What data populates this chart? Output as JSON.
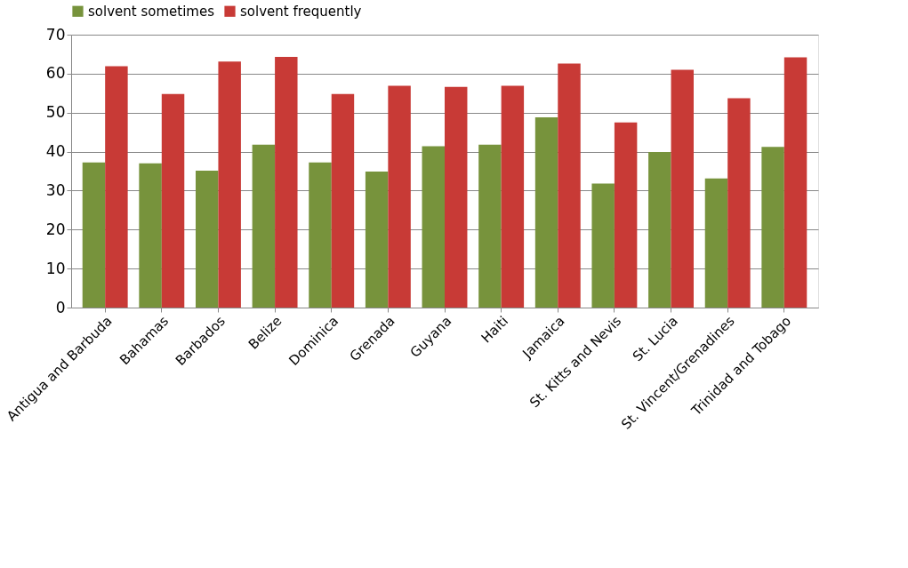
{
  "chart_data": {
    "type": "bar",
    "categories": [
      "Antigua and Barbuda",
      "Bahamas",
      "Barbados",
      "Belize",
      "Dominica",
      "Grenada",
      "Guyana",
      "Haiti",
      "Jamaica",
      "St. Kitts and Nevis",
      "St. Lucia",
      "St. Vincent/Grenadines",
      "Trinidad and Tobago"
    ],
    "series": [
      {
        "name": "solvent sometimes",
        "color": "#77933c",
        "values": [
          37.2,
          37.0,
          35.1,
          41.8,
          37.2,
          34.9,
          41.4,
          41.8,
          48.8,
          31.8,
          39.9,
          33.1,
          41.2
        ]
      },
      {
        "name": "solvent frequently",
        "color": "#c83a36",
        "values": [
          61.9,
          54.8,
          63.1,
          64.3,
          54.8,
          56.9,
          56.6,
          56.9,
          62.6,
          47.5,
          61.0,
          53.7,
          64.2
        ]
      }
    ],
    "ylim": [
      0,
      70
    ],
    "yticks": [
      0,
      10,
      20,
      30,
      40,
      50,
      60,
      70
    ],
    "grid": "y",
    "legend": "top"
  }
}
